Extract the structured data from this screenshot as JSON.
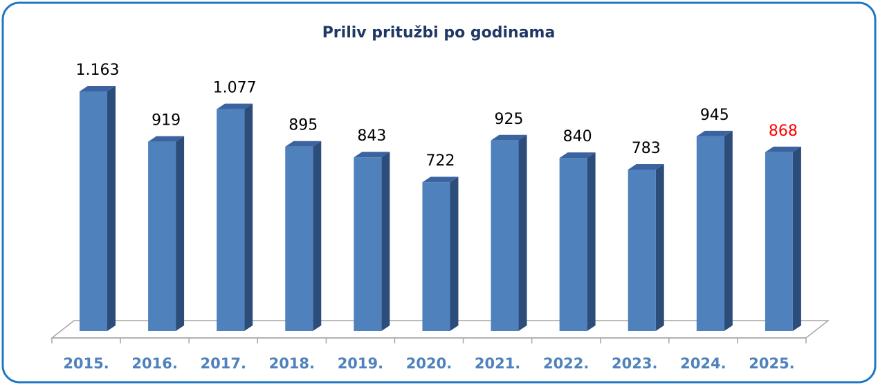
{
  "chart_data": {
    "type": "bar3d",
    "title": "Priliv pritužbi po godinama",
    "categories": [
      "2015.",
      "2016.",
      "2017.",
      "2018.",
      "2019.",
      "2020.",
      "2021.",
      "2022.",
      "2023.",
      "2024.",
      "2025."
    ],
    "values": [
      1163,
      919,
      1077,
      895,
      843,
      722,
      925,
      840,
      783,
      945,
      868
    ],
    "value_labels": [
      "1.163",
      "919",
      "1.077",
      "895",
      "843",
      "722",
      "925",
      "840",
      "783",
      "945",
      "868"
    ],
    "value_label_colors": [
      "#000000",
      "#000000",
      "#000000",
      "#000000",
      "#000000",
      "#000000",
      "#000000",
      "#000000",
      "#000000",
      "#000000",
      "#ff0000"
    ],
    "color": "#4f81bd",
    "grid": false
  }
}
